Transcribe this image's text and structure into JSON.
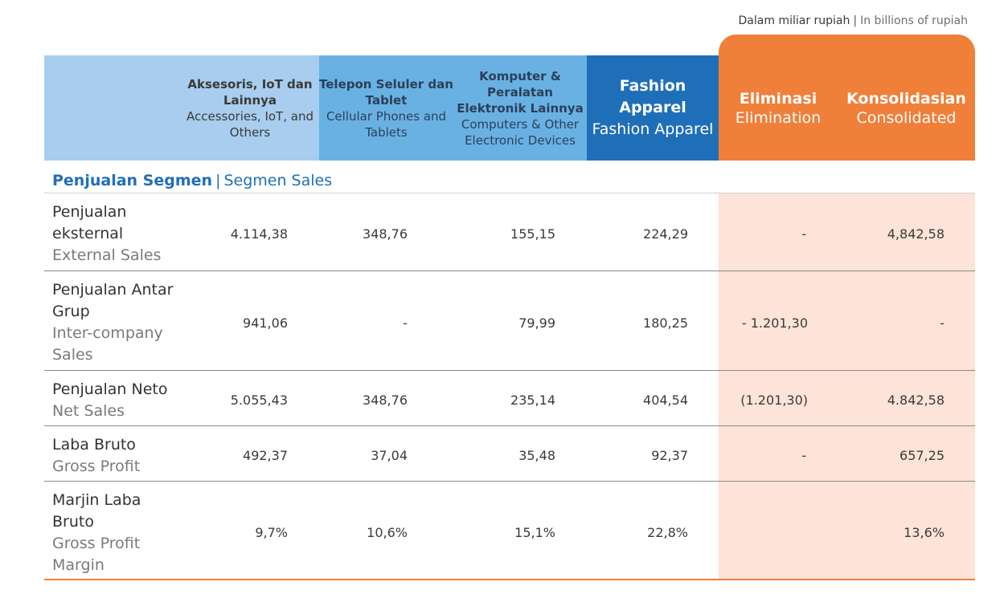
{
  "unit_note": {
    "id": "Dalam miliar rupiah",
    "sep": "|",
    "en": "In billions of rupiah"
  },
  "headers": {
    "accessories": {
      "id": "Aksesoris, IoT dan Lainnya",
      "en": "Accessories, IoT, and Others"
    },
    "cellular": {
      "id": "Telepon Seluler dan Tablet",
      "en": "Cellular Phones and Tablets"
    },
    "computers": {
      "id": "Komputer & Peralatan Elektronik Lainnya",
      "en": "Computers & Other Electronic Devices"
    },
    "fashion": {
      "id": "Fashion Apparel",
      "en": "Fashion Apparel"
    },
    "elimination": {
      "id": "Eliminasi",
      "en": "Elimination"
    },
    "consolidated": {
      "id": "Konsolidasian",
      "en": "Consolidated"
    }
  },
  "section": {
    "id": "Penjualan Segmen",
    "sep": "|",
    "en": "Segmen Sales"
  },
  "rows": [
    {
      "id": "Penjualan eksternal",
      "en": "External Sales",
      "values": [
        "4.114,38",
        "348,76",
        "155,15",
        "224,29",
        "-",
        "4,842,58"
      ]
    },
    {
      "id": "Penjualan Antar Grup",
      "en": "Inter-company Sales",
      "values": [
        "941,06",
        "-",
        "79,99",
        "180,25",
        "- 1.201,30",
        "-"
      ]
    },
    {
      "id": "Penjualan Neto",
      "en": "Net Sales",
      "values": [
        "5.055,43",
        "348,76",
        "235,14",
        "404,54",
        "(1.201,30)",
        "4.842,58"
      ]
    },
    {
      "id": "Laba Bruto",
      "en": "Gross Profit",
      "values": [
        "492,37",
        "37,04",
        "35,48",
        "92,37",
        "-",
        "657,25"
      ]
    },
    {
      "id": "Marjin Laba Bruto",
      "en": "Gross Profit Margin",
      "values": [
        "9,7%",
        "10,6%",
        "15,1%",
        "22,8%",
        "",
        "13,6%"
      ]
    }
  ],
  "colors": {
    "light_blue": "#a8cdee",
    "mid_blue": "#6ab1e3",
    "dark_blue": "#1f6fb8",
    "orange": "#f07f3a",
    "peach": "#fde3d8"
  }
}
